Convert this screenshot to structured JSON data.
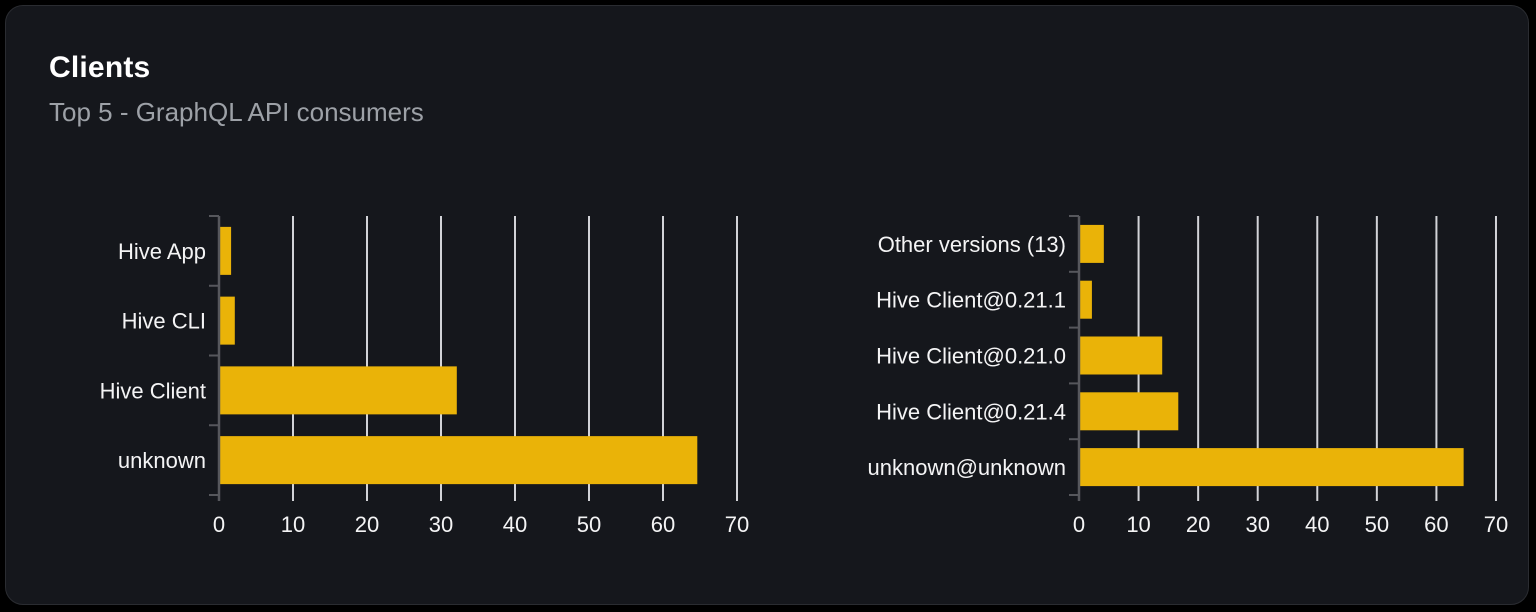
{
  "card": {
    "title": "Clients",
    "subtitle": "Top 5 - GraphQL API consumers"
  },
  "colors": {
    "page_background": "#000000",
    "panel_background": "#15171c",
    "panel_border": "#2a2c31",
    "bar": "#eab308",
    "grid_line": "#d2d3d7",
    "axis_line": "#56575c",
    "axis_text": "#f4f4f5",
    "title_text": "#ffffff",
    "subtitle_text": "#9da1a7"
  },
  "chart_data": [
    {
      "type": "bar",
      "orientation": "horizontal",
      "name": "clients-by-name",
      "categories": [
        "Hive App",
        "Hive CLI",
        "Hive Client",
        "unknown"
      ],
      "values": [
        1.5,
        2,
        32,
        64.5
      ],
      "xlim": [
        0,
        70
      ],
      "xtick_step": 10,
      "xtick_labels": [
        "0",
        "10",
        "20",
        "30",
        "40",
        "50",
        "60",
        "70"
      ],
      "grid": true,
      "legend": false
    },
    {
      "type": "bar",
      "orientation": "horizontal",
      "name": "clients-by-version",
      "categories": [
        "Other versions (13)",
        "Hive Client@0.21.1",
        "Hive Client@0.21.0",
        "Hive Client@0.21.4",
        "unknown@unknown"
      ],
      "values": [
        4,
        2,
        13.8,
        16.5,
        64.4
      ],
      "xlim": [
        0,
        70
      ],
      "xtick_step": 10,
      "xtick_labels": [
        "0",
        "10",
        "20",
        "30",
        "40",
        "50",
        "60",
        "70"
      ],
      "grid": true,
      "legend": false
    }
  ]
}
